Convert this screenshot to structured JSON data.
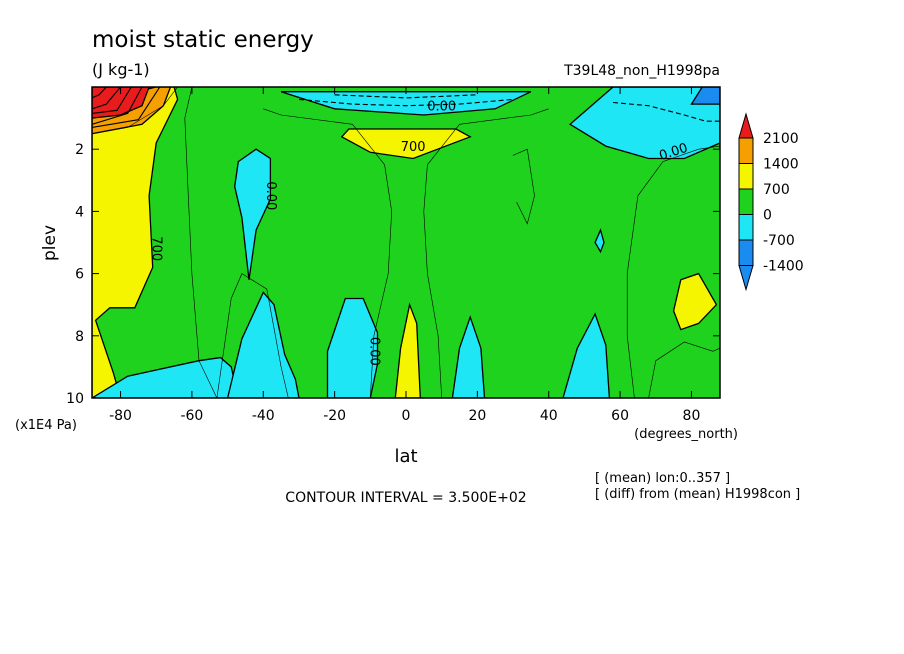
{
  "chart_data": {
    "type": "heatmap",
    "title": "moist static energy",
    "units": "(J kg-1)",
    "experiment": "T39L48_non_H1998pa",
    "xlabel": "lat",
    "xunit": "(degrees_north)",
    "ylabel": "plev",
    "yunit": "(x1E4 Pa)",
    "xlim": [
      -88,
      88
    ],
    "ylim": [
      10,
      0
    ],
    "x_ticks": [
      -80,
      -60,
      -40,
      -20,
      0,
      20,
      40,
      60,
      80
    ],
    "x_tick_labels": [
      "-80",
      "-60",
      "-40",
      "-20",
      "0",
      "20",
      "40",
      "60",
      "80"
    ],
    "y_ticks": [
      2,
      4,
      6,
      8,
      10
    ],
    "y_tick_labels": [
      "2",
      "4",
      "6",
      "8",
      "10"
    ],
    "contour_interval_text": "CONTOUR INTERVAL = 3.500E+02",
    "notes": [
      "[ (mean) lon:0..357 ]",
      "[ (diff) from (mean) H1998con ]"
    ],
    "contour_labels": [
      {
        "text": "0.00",
        "lat": 10,
        "plev": 0.65,
        "rotate": 0
      },
      {
        "text": "700",
        "lat": 2,
        "plev": 1.95,
        "rotate": 0
      },
      {
        "text": "0.00",
        "lat": 75,
        "plev": 2.1,
        "rotate": -18
      },
      {
        "text": "0.00",
        "lat": -38,
        "plev": 3.5,
        "rotate": 90
      },
      {
        "text": "700",
        "lat": -70,
        "plev": 5.2,
        "rotate": 90
      },
      {
        "text": "0.00",
        "lat": -9,
        "plev": 8.5,
        "rotate": 90
      }
    ],
    "legend": {
      "levels": [
        {
          "label": "2100",
          "color": "#e81c1c"
        },
        {
          "label": "1400",
          "color": "#f5a000"
        },
        {
          "label": "700",
          "color": "#f5f500"
        },
        {
          "label": "0",
          "color": "#1ed21e"
        },
        {
          "label": "-700",
          "color": "#1ee6f5"
        },
        {
          "label": "-1400",
          "color": "#1a8cf0"
        }
      ],
      "top_arrow_color": "#e81c1c",
      "bottom_arrow_color": "#1a8cf0"
    },
    "regions": [
      {
        "level": "700",
        "color": "#f5f500",
        "points": [
          [
            -88,
            0.5
          ],
          [
            -72,
            0
          ],
          [
            -65,
            0
          ],
          [
            -64,
            0.4
          ],
          [
            -70,
            1.8
          ],
          [
            -72,
            3.5
          ],
          [
            -71,
            5.8
          ],
          [
            -76,
            7.1
          ],
          [
            -83,
            7.1
          ],
          [
            -87,
            7.5
          ],
          [
            -82,
            9.2
          ],
          [
            -80,
            10
          ],
          [
            -88,
            10
          ]
        ]
      },
      {
        "level": "1400",
        "color": "#f5a000",
        "points": [
          [
            -88,
            0.5
          ],
          [
            -70,
            0
          ],
          [
            -66,
            0
          ],
          [
            -68,
            0.6
          ],
          [
            -74,
            1.2
          ],
          [
            -88,
            1.5
          ]
        ]
      },
      {
        "level": "2100",
        "color": "#e81c1c",
        "points": [
          [
            -88,
            0
          ],
          [
            -72,
            0
          ],
          [
            -74,
            0.6
          ],
          [
            -80,
            0.9
          ],
          [
            -88,
            1.0
          ]
        ]
      },
      {
        "level": "-700",
        "color": "#1ee6f5",
        "points": [
          [
            -35,
            0.15
          ],
          [
            35,
            0.15
          ],
          [
            25,
            0.7
          ],
          [
            5,
            0.9
          ],
          [
            -20,
            0.7
          ]
        ]
      },
      {
        "level": "-700",
        "color": "#1ee6f5",
        "points": [
          [
            46,
            1.2
          ],
          [
            58,
            0
          ],
          [
            88,
            0
          ],
          [
            88,
            1.8
          ],
          [
            78,
            2.3
          ],
          [
            68,
            2.3
          ],
          [
            56,
            1.9
          ]
        ]
      },
      {
        "level": "-1400",
        "color": "#1a8cf0",
        "points": [
          [
            80,
            0.55
          ],
          [
            83,
            0
          ],
          [
            88,
            0
          ],
          [
            88,
            0.55
          ]
        ]
      },
      {
        "level": "700",
        "color": "#f5f500",
        "points": [
          [
            -18,
            1.6
          ],
          [
            -16,
            1.35
          ],
          [
            14,
            1.35
          ],
          [
            18,
            1.6
          ],
          [
            2,
            2.3
          ],
          [
            -10,
            2.1
          ]
        ]
      },
      {
        "level": "-700",
        "color": "#1ee6f5",
        "points": [
          [
            -47,
            2.4
          ],
          [
            -42,
            2.0
          ],
          [
            -38,
            2.3
          ],
          [
            -38,
            3.6
          ],
          [
            -42,
            4.6
          ],
          [
            -44,
            6.2
          ],
          [
            -46,
            4.2
          ],
          [
            -48,
            3.2
          ]
        ]
      },
      {
        "level": "-700",
        "color": "#1ee6f5",
        "points": [
          [
            -88,
            10
          ],
          [
            -78,
            9.3
          ],
          [
            -70,
            9.1
          ],
          [
            -58,
            8.8
          ],
          [
            -52,
            8.7
          ],
          [
            -49,
            9.0
          ],
          [
            -47,
            10
          ]
        ]
      },
      {
        "level": "-700",
        "color": "#1ee6f5",
        "points": [
          [
            -30,
            10
          ],
          [
            -31,
            9.4
          ],
          [
            -34,
            8.6
          ],
          [
            -37,
            7.0
          ],
          [
            -40,
            6.6
          ],
          [
            -46,
            8.1
          ],
          [
            -50,
            10
          ]
        ]
      },
      {
        "level": "-700",
        "color": "#1ee6f5",
        "points": [
          [
            -22,
            8.5
          ],
          [
            -17,
            6.8
          ],
          [
            -12,
            6.8
          ],
          [
            -8,
            7.9
          ],
          [
            -8,
            8.9
          ],
          [
            -10,
            10
          ],
          [
            -22,
            10
          ]
        ]
      },
      {
        "level": "700",
        "color": "#f5f500",
        "points": [
          [
            -3,
            10
          ],
          [
            -1.5,
            8.4
          ],
          [
            1,
            7.0
          ],
          [
            3,
            7.6
          ],
          [
            4,
            10
          ]
        ]
      },
      {
        "level": "-700",
        "color": "#1ee6f5",
        "points": [
          [
            13,
            10
          ],
          [
            15,
            8.4
          ],
          [
            18,
            7.4
          ],
          [
            21,
            8.4
          ],
          [
            22,
            10
          ]
        ]
      },
      {
        "level": "-700",
        "color": "#1ee6f5",
        "points": [
          [
            44,
            10
          ],
          [
            48,
            8.4
          ],
          [
            53,
            7.3
          ],
          [
            56,
            8.3
          ],
          [
            57,
            10
          ]
        ]
      },
      {
        "level": "-700",
        "color": "#1ee6f5",
        "points": [
          [
            53,
            5.0
          ],
          [
            54.5,
            4.6
          ],
          [
            55.5,
            5.0
          ],
          [
            54.5,
            5.3
          ]
        ]
      },
      {
        "level": "700",
        "color": "#f5f500",
        "points": [
          [
            77,
            6.2
          ],
          [
            82,
            6.0
          ],
          [
            87,
            7.0
          ],
          [
            82,
            7.6
          ],
          [
            77,
            7.8
          ],
          [
            75,
            7.2
          ]
        ]
      }
    ],
    "contours": [
      {
        "style": "dashed",
        "points": [
          [
            -30,
            0.4
          ],
          [
            -15,
            0.55
          ],
          [
            0,
            0.6
          ],
          [
            15,
            0.55
          ],
          [
            30,
            0.4
          ]
        ]
      },
      {
        "style": "dashed",
        "points": [
          [
            -20,
            0.25
          ],
          [
            0,
            0.35
          ],
          [
            20,
            0.25
          ]
        ]
      },
      {
        "style": "dashed",
        "points": [
          [
            58,
            0.5
          ],
          [
            68,
            0.6
          ],
          [
            78,
            0.9
          ],
          [
            84,
            1.1
          ],
          [
            88,
            1.1
          ]
        ]
      },
      {
        "style": "solid",
        "points": [
          [
            -84,
            0
          ],
          [
            -86,
            0.25
          ],
          [
            -88,
            0.35
          ]
        ]
      },
      {
        "style": "solid",
        "points": [
          [
            -80,
            0
          ],
          [
            -84,
            0.55
          ],
          [
            -88,
            0.7
          ]
        ]
      },
      {
        "style": "solid",
        "points": [
          [
            -77,
            0
          ],
          [
            -81,
            0.75
          ],
          [
            -88,
            0.85
          ]
        ]
      },
      {
        "style": "solid",
        "points": [
          [
            -74,
            0
          ],
          [
            -78,
            0.85
          ],
          [
            -88,
            1.2
          ]
        ]
      },
      {
        "style": "solid",
        "points": [
          [
            -69,
            0
          ],
          [
            -75,
            1.05
          ],
          [
            -88,
            1.3
          ]
        ]
      },
      {
        "style": "thin",
        "points": [
          [
            -88,
            1.5
          ],
          [
            -78,
            1.3
          ],
          [
            -68,
            0.6
          ],
          [
            -64,
            0
          ]
        ]
      },
      {
        "style": "thin",
        "points": [
          [
            -60,
            0
          ],
          [
            -62,
            1.0
          ],
          [
            -61,
            3.5
          ],
          [
            -60,
            6.0
          ],
          [
            -58,
            8.8
          ],
          [
            -53,
            10
          ]
        ]
      },
      {
        "style": "thin",
        "points": [
          [
            -33,
            10
          ],
          [
            -35,
            9.0
          ],
          [
            -39,
            6.5
          ],
          [
            -46,
            6.0
          ],
          [
            -49,
            6.8
          ],
          [
            -53,
            10
          ]
        ]
      },
      {
        "style": "thin",
        "points": [
          [
            -10,
            10
          ],
          [
            -9,
            8.0
          ],
          [
            -5,
            6.0
          ],
          [
            -4,
            4.0
          ],
          [
            -6,
            2.5
          ],
          [
            -15,
            1.2
          ],
          [
            -35,
            0.9
          ],
          [
            -40,
            0.7
          ]
        ]
      },
      {
        "style": "thin",
        "points": [
          [
            10,
            10
          ],
          [
            9,
            8.0
          ],
          [
            6,
            6.0
          ],
          [
            5,
            4.0
          ],
          [
            6,
            2.5
          ],
          [
            15,
            1.2
          ],
          [
            35,
            0.9
          ],
          [
            40,
            0.7
          ]
        ]
      },
      {
        "style": "thin",
        "points": [
          [
            30,
            2.2
          ],
          [
            34,
            2.0
          ],
          [
            36,
            3.5
          ],
          [
            34,
            4.4
          ],
          [
            31,
            3.7
          ]
        ]
      },
      {
        "style": "thin",
        "points": [
          [
            64,
            10
          ],
          [
            62,
            8.0
          ],
          [
            62,
            6.0
          ],
          [
            65,
            3.5
          ],
          [
            72,
            2.4
          ],
          [
            82,
            2.0
          ],
          [
            88,
            1.9
          ]
        ]
      },
      {
        "style": "thin",
        "points": [
          [
            68,
            10
          ],
          [
            70,
            8.8
          ],
          [
            78,
            8.2
          ],
          [
            86,
            8.5
          ],
          [
            88,
            8.4
          ]
        ]
      }
    ]
  }
}
